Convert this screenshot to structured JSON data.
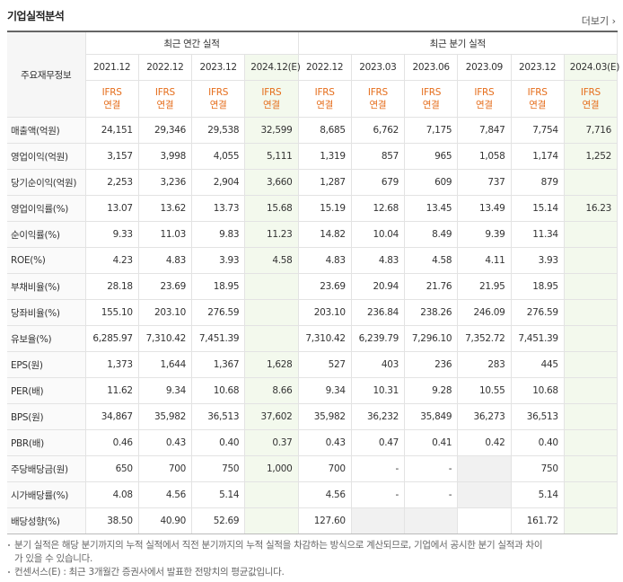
{
  "header": {
    "title": "기업실적분석",
    "more": "더보기"
  },
  "table": {
    "corner": "주요재무정보",
    "groups": [
      "최근 연간 실적",
      "최근 분기 실적"
    ],
    "periods": [
      "2021.12",
      "2022.12",
      "2023.12",
      "2024.12(E)",
      "2022.12",
      "2023.03",
      "2023.06",
      "2023.09",
      "2023.12",
      "2024.03(E)"
    ],
    "standards": [
      "IFRS\n연결",
      "IFRS\n연결",
      "IFRS\n연결",
      "IFRS\n연결",
      "IFRS\n연결",
      "IFRS\n연결",
      "IFRS\n연결",
      "IFRS\n연결",
      "IFRS\n연결",
      "IFRS\n연결"
    ],
    "rows": [
      {
        "label": "매출액(억원)",
        "values": [
          "24,151",
          "29,346",
          "29,538",
          "32,599",
          "8,685",
          "6,762",
          "7,175",
          "7,847",
          "7,754",
          "7,716"
        ]
      },
      {
        "label": "영업이익(억원)",
        "values": [
          "3,157",
          "3,998",
          "4,055",
          "5,111",
          "1,319",
          "857",
          "965",
          "1,058",
          "1,174",
          "1,252"
        ]
      },
      {
        "label": "당기순이익(억원)",
        "values": [
          "2,253",
          "3,236",
          "2,904",
          "3,660",
          "1,287",
          "679",
          "609",
          "737",
          "879",
          null
        ]
      },
      {
        "label": "영업이익률(%)",
        "values": [
          "13.07",
          "13.62",
          "13.73",
          "15.68",
          "15.19",
          "12.68",
          "13.45",
          "13.49",
          "15.14",
          "16.23"
        ]
      },
      {
        "label": "순이익률(%)",
        "values": [
          "9.33",
          "11.03",
          "9.83",
          "11.23",
          "14.82",
          "10.04",
          "8.49",
          "9.39",
          "11.34",
          null
        ]
      },
      {
        "label": "ROE(%)",
        "values": [
          "4.23",
          "4.83",
          "3.93",
          "4.58",
          "4.83",
          "4.83",
          "4.58",
          "4.11",
          "3.93",
          null
        ]
      },
      {
        "label": "부채비율(%)",
        "values": [
          "28.18",
          "23.69",
          "18.95",
          null,
          "23.69",
          "20.94",
          "21.76",
          "21.95",
          "18.95",
          null
        ]
      },
      {
        "label": "당좌비율(%)",
        "values": [
          "155.10",
          "203.10",
          "276.59",
          null,
          "203.10",
          "236.84",
          "238.26",
          "246.09",
          "276.59",
          null
        ]
      },
      {
        "label": "유보율(%)",
        "values": [
          "6,285.97",
          "7,310.42",
          "7,451.39",
          null,
          "7,310.42",
          "6,239.79",
          "7,296.10",
          "7,352.72",
          "7,451.39",
          null
        ]
      },
      {
        "label": "EPS(원)",
        "values": [
          "1,373",
          "1,644",
          "1,367",
          "1,628",
          "527",
          "403",
          "236",
          "283",
          "445",
          null
        ]
      },
      {
        "label": "PER(배)",
        "values": [
          "11.62",
          "9.34",
          "10.68",
          "8.66",
          "9.34",
          "10.31",
          "9.28",
          "10.55",
          "10.68",
          null
        ]
      },
      {
        "label": "BPS(원)",
        "values": [
          "34,867",
          "35,982",
          "36,513",
          "37,602",
          "35,982",
          "36,232",
          "35,849",
          "36,273",
          "36,513",
          null
        ]
      },
      {
        "label": "PBR(배)",
        "values": [
          "0.46",
          "0.43",
          "0.40",
          "0.37",
          "0.43",
          "0.47",
          "0.41",
          "0.42",
          "0.40",
          null
        ]
      },
      {
        "label": "주당배당금(원)",
        "values": [
          "650",
          "700",
          "750",
          "1,000",
          "700",
          "-",
          "-",
          null,
          "750",
          null
        ]
      },
      {
        "label": "시가배당률(%)",
        "values": [
          "4.08",
          "4.56",
          "5.14",
          null,
          "4.56",
          "-",
          "-",
          null,
          "5.14",
          null
        ]
      },
      {
        "label": "배당성향(%)",
        "values": [
          "38.50",
          "40.90",
          "52.69",
          null,
          "127.60",
          null,
          null,
          null,
          "161.72",
          null
        ]
      }
    ]
  },
  "notes": [
    "분기 실적은 해당 분기까지의 누적 실적에서 직전 분기까지의 누적 실적을 차감하는 방식으로 계산되므로, 기업에서 공시한 분기 실적과 차이가 있을 수 있습니다.",
    "컨센서스(E) : 최근 3개월간 증권사에서 발표한 전망치의 평균값입니다."
  ]
}
